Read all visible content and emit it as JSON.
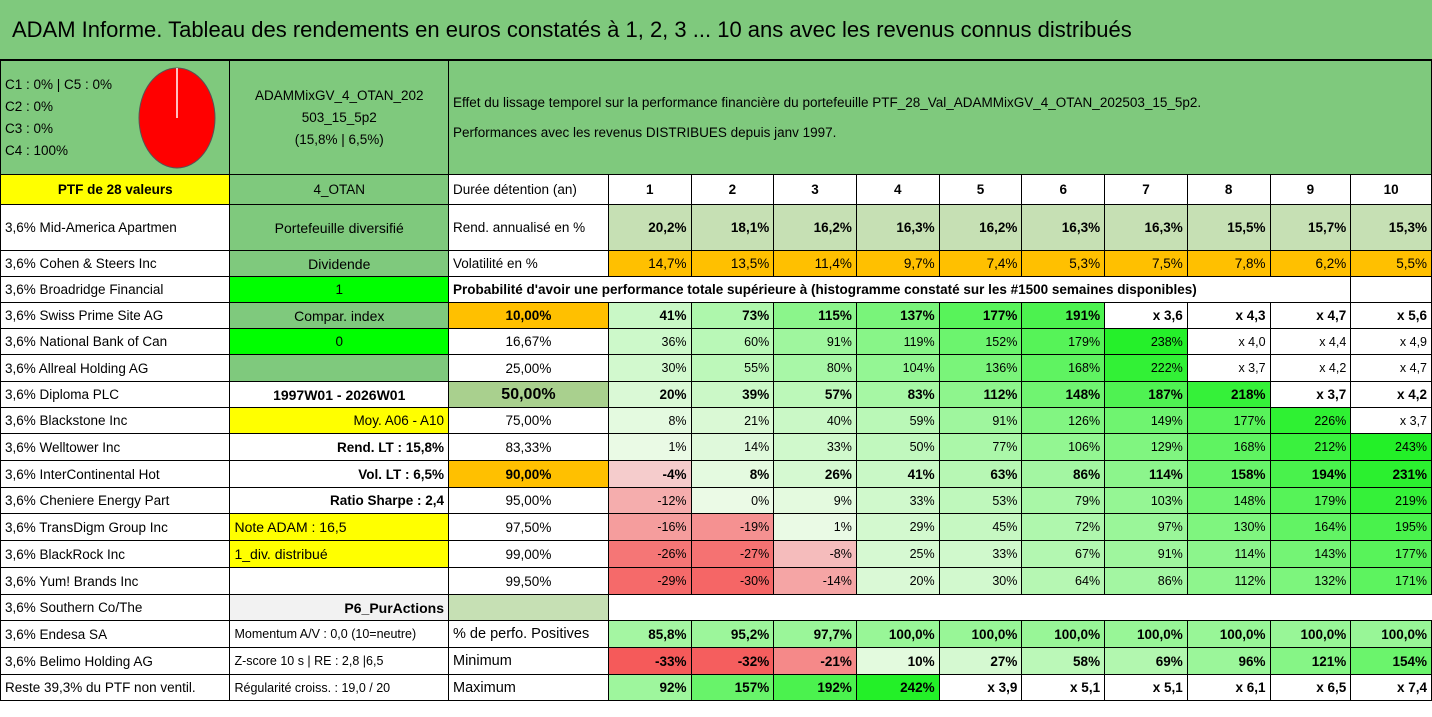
{
  "title": "ADAM Informe. Tableau des rendements en euros constatés à 1, 2, 3 ... 10 ans avec les revenus connus distribués",
  "legend": [
    "C1 : 0% | C5 : 0%",
    "C2 : 0%",
    "C3 : 0%",
    "C4 : 100%"
  ],
  "portfolio_name": [
    "ADAMMixGV_4_OTAN_202",
    "503_15_5p2",
    "(15,8% | 6,5%)"
  ],
  "description": [
    "Effet du lissage temporel sur la performance financière du portefeuille PTF_28_Val_ADAMMixGV_4_OTAN_202503_15_5p2.",
    "Performances avec les revenus DISTRIBUES depuis janv 1997."
  ],
  "ptf_label": "PTF de 28 valeurs",
  "otan_label": "4_OTAN",
  "duree_label": "Durée détention (an)",
  "years": [
    "1",
    "2",
    "3",
    "4",
    "5",
    "6",
    "7",
    "8",
    "9",
    "10"
  ],
  "holdings": [
    "3,6% Mid-America Apartmen",
    "3,6% Cohen & Steers Inc",
    "3,6% Broadridge Financial",
    "3,6% Swiss Prime Site AG",
    "3,6% National Bank of Can",
    "3,6% Allreal Holding AG",
    "3,6% Diploma PLC",
    "3,6% Blackstone Inc",
    "3,6% Welltower Inc",
    "3,6% InterContinental Hot",
    "3,6% Cheniere Energy Part",
    "3,6% TransDigm Group Inc",
    "3,6% BlackRock Inc",
    "3,6% Yum! Brands Inc",
    "3,6% Southern Co/The",
    "3,6% Endesa SA",
    "3,6% Belimo Holding AG",
    "Reste 39,3% du PTF non ventil."
  ],
  "info": [
    "Portefeuille diversifié",
    "Dividende",
    "1",
    "Compar. index",
    "0",
    "",
    "1997W01 - 2026W01",
    "Moy. A06 - A10",
    "Rend. LT : 15,8%",
    "Vol. LT : 6,5%",
    "Ratio Sharpe : 2,4",
    "Note ADAM : 16,5",
    "1_div. distribué",
    "",
    "P6_PurActions",
    "Momentum A/V : 0,0 (10=neutre)",
    "Z-score 10 s | RE : 2,8 |6,5",
    "Régularité croiss. : 19,0 / 20"
  ],
  "rend": {
    "label": "Rend. annualisé en %",
    "values": [
      "20,2%",
      "18,1%",
      "16,2%",
      "16,3%",
      "16,2%",
      "16,3%",
      "16,3%",
      "15,5%",
      "15,7%",
      "15,3%"
    ]
  },
  "vol": {
    "label": "Volatilité en %",
    "values": [
      "14,7%",
      "13,5%",
      "11,4%",
      "9,7%",
      "7,4%",
      "5,3%",
      "7,5%",
      "7,8%",
      "6,2%",
      "5,5%"
    ]
  },
  "proba_title": "Probabilité d'avoir une performance totale supérieure à (histogramme constaté sur les #1500 semaines disponibles)",
  "prob_rows": [
    {
      "p": "10,00%",
      "v": [
        "41%",
        "73%",
        "115%",
        "137%",
        "177%",
        "191%",
        "x 3,6",
        "x 4,3",
        "x 4,7",
        "x 5,6"
      ]
    },
    {
      "p": "16,67%",
      "v": [
        "36%",
        "60%",
        "91%",
        "119%",
        "152%",
        "179%",
        "238%",
        "x 4,0",
        "x 4,4",
        "x 4,9"
      ]
    },
    {
      "p": "25,00%",
      "v": [
        "30%",
        "55%",
        "80%",
        "104%",
        "136%",
        "168%",
        "222%",
        "x 3,7",
        "x 4,2",
        "x 4,7"
      ]
    },
    {
      "p": "50,00%",
      "v": [
        "20%",
        "39%",
        "57%",
        "83%",
        "112%",
        "148%",
        "187%",
        "218%",
        "x 3,7",
        "x 4,2"
      ]
    },
    {
      "p": "75,00%",
      "v": [
        "8%",
        "21%",
        "40%",
        "59%",
        "91%",
        "126%",
        "149%",
        "177%",
        "226%",
        "x 3,7"
      ]
    },
    {
      "p": "83,33%",
      "v": [
        "1%",
        "14%",
        "33%",
        "50%",
        "77%",
        "106%",
        "129%",
        "168%",
        "212%",
        "243%"
      ]
    },
    {
      "p": "90,00%",
      "v": [
        "-4%",
        "8%",
        "26%",
        "41%",
        "63%",
        "86%",
        "114%",
        "158%",
        "194%",
        "231%"
      ]
    },
    {
      "p": "95,00%",
      "v": [
        "-12%",
        "0%",
        "9%",
        "33%",
        "53%",
        "79%",
        "103%",
        "148%",
        "179%",
        "219%"
      ]
    },
    {
      "p": "97,50%",
      "v": [
        "-16%",
        "-19%",
        "1%",
        "29%",
        "45%",
        "72%",
        "97%",
        "130%",
        "164%",
        "195%"
      ]
    },
    {
      "p": "99,00%",
      "v": [
        "-26%",
        "-27%",
        "-8%",
        "25%",
        "33%",
        "67%",
        "91%",
        "114%",
        "143%",
        "177%"
      ]
    },
    {
      "p": "99,50%",
      "v": [
        "-29%",
        "-30%",
        "-14%",
        "20%",
        "30%",
        "64%",
        "86%",
        "112%",
        "132%",
        "171%"
      ]
    }
  ],
  "positives": {
    "label": "% de perfo. Positives",
    "values": [
      "85,8%",
      "95,2%",
      "97,7%",
      "100,0%",
      "100,0%",
      "100,0%",
      "100,0%",
      "100,0%",
      "100,0%",
      "100,0%"
    ]
  },
  "minimum": {
    "label": "Minimum",
    "values": [
      "-33%",
      "-32%",
      "-21%",
      "10%",
      "27%",
      "58%",
      "69%",
      "96%",
      "121%",
      "154%"
    ]
  },
  "maximum": {
    "label": "Maximum",
    "values": [
      "92%",
      "157%",
      "192%",
      "242%",
      "x 3,9",
      "x 5,1",
      "x 5,1",
      "x 6,1",
      "x 6,5",
      "x 7,4"
    ]
  },
  "colors": {
    "green_header": "#7fc97d",
    "bright_green": "#00ff00",
    "yellow": "#ffff00",
    "orange": "#ffc000",
    "light_green": "#c6e0b4",
    "red": "#e01010"
  }
}
